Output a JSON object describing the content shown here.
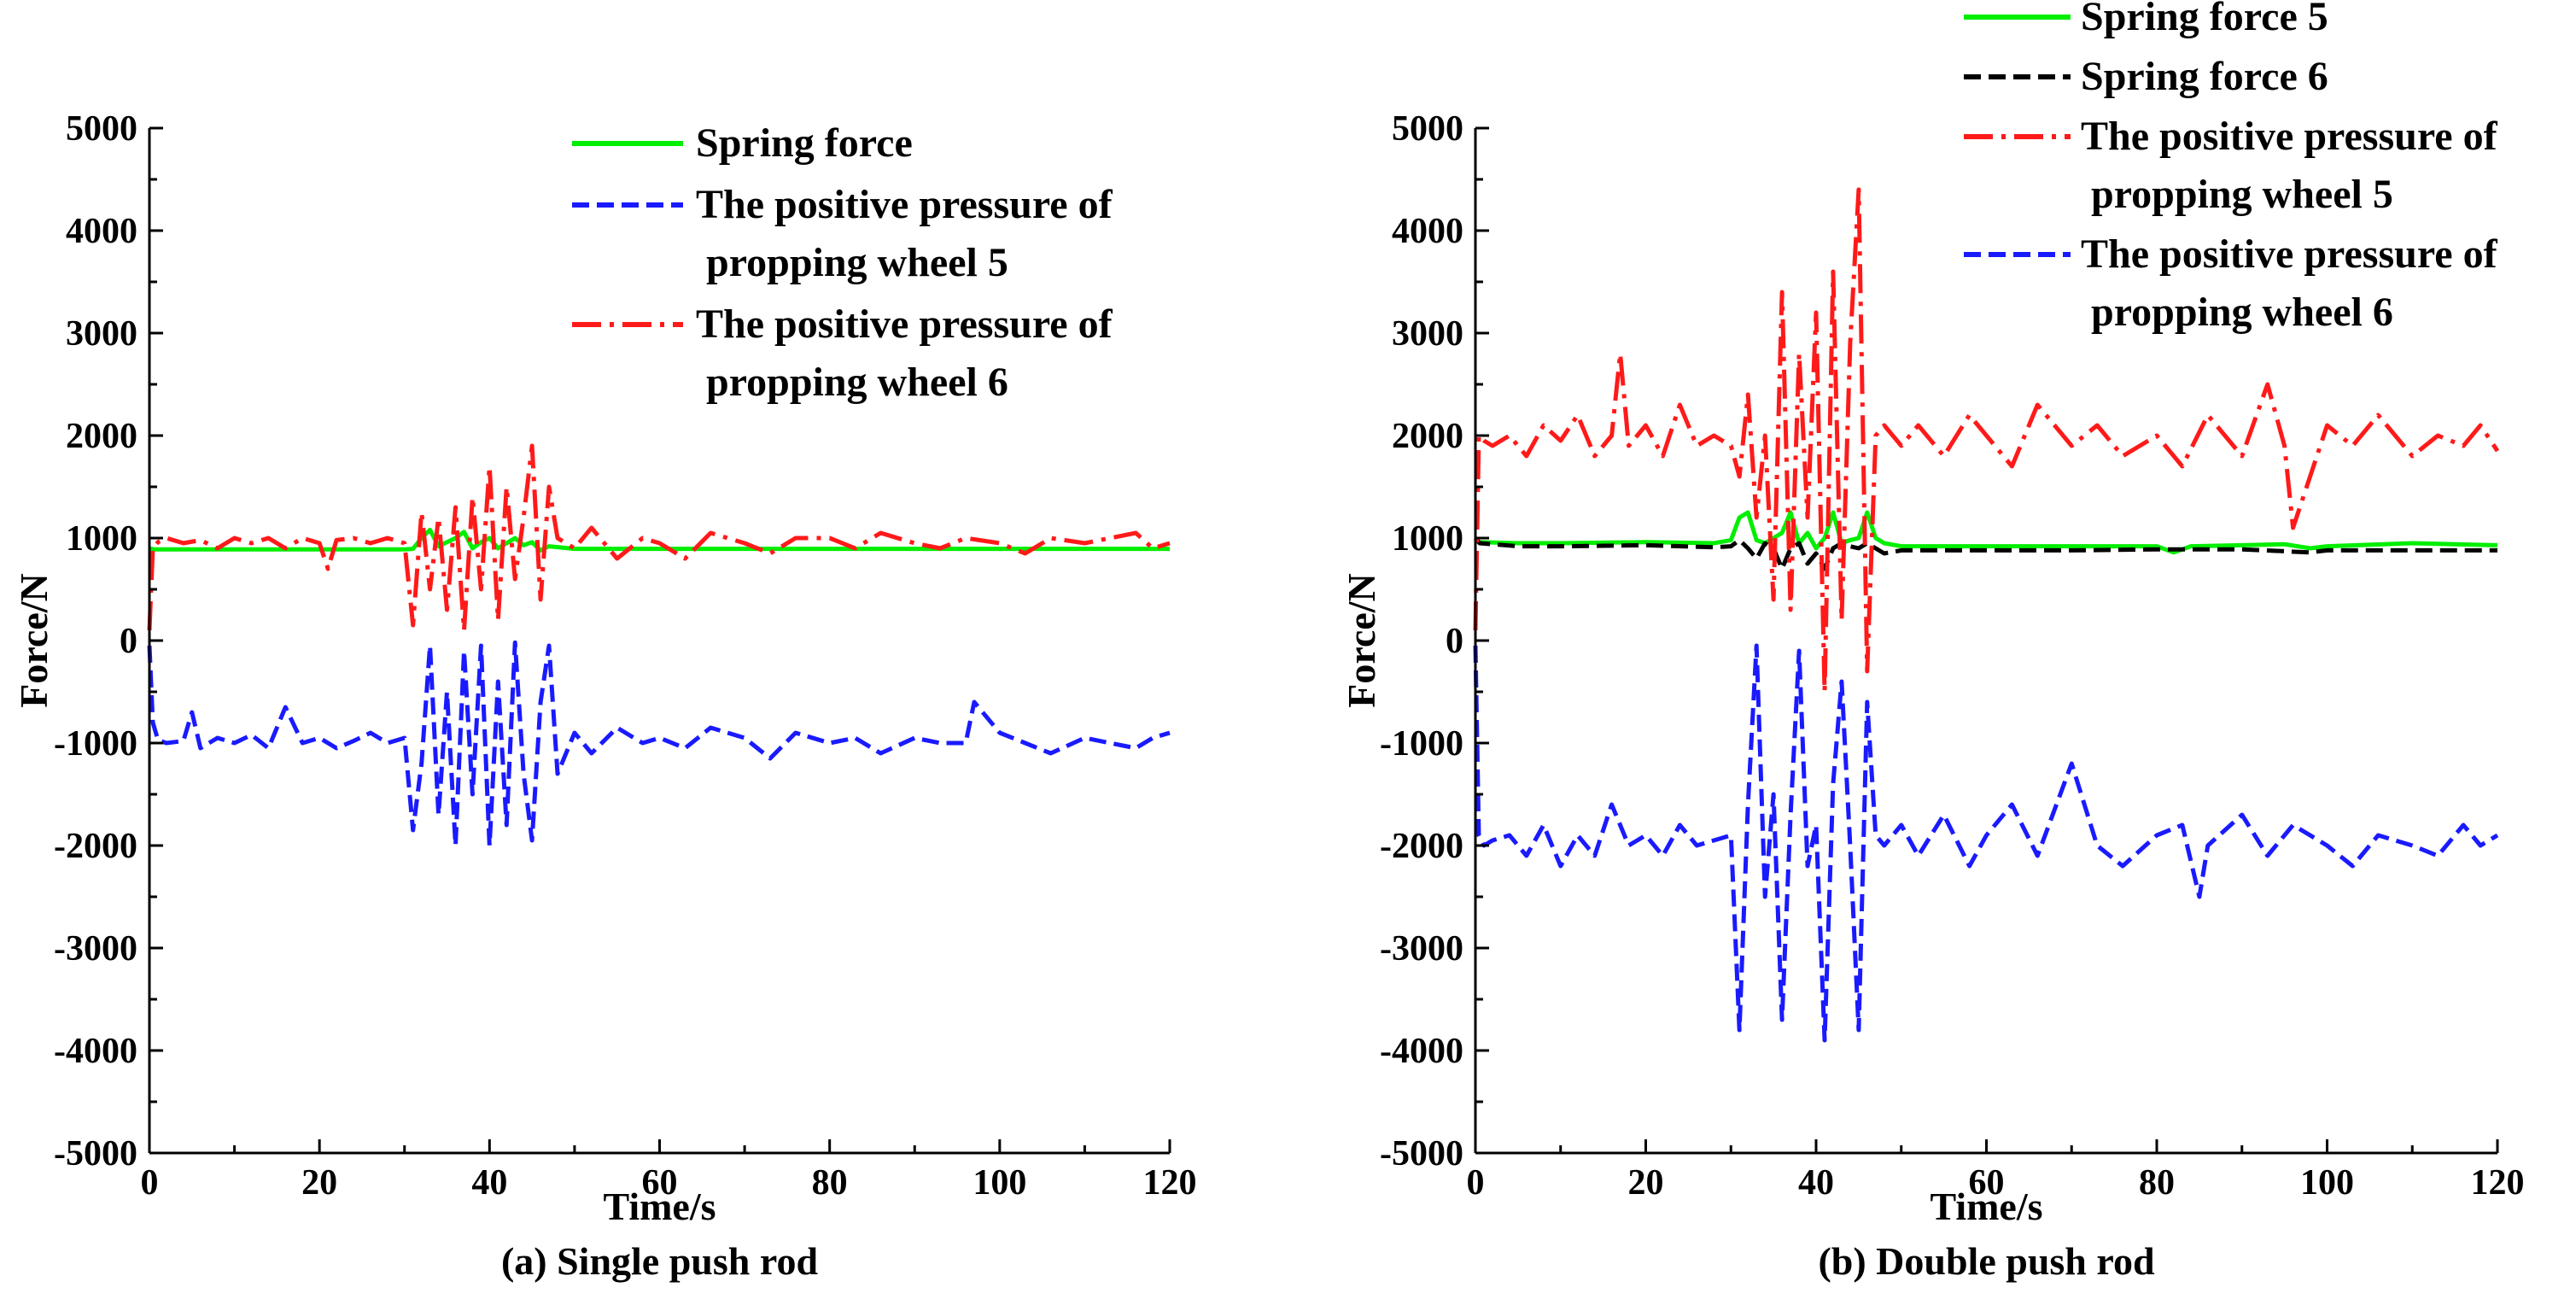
{
  "chart_data": [
    {
      "id": "a",
      "type": "line",
      "caption": "(a) Single push rod",
      "xlabel": "Time/s",
      "ylabel": "Force/N",
      "xlim": [
        0,
        120
      ],
      "ylim": [
        -5000,
        5000
      ],
      "xticks": [
        0,
        20,
        40,
        60,
        80,
        100,
        120
      ],
      "yticks": [
        -5000,
        -4000,
        -3000,
        -2000,
        -1000,
        0,
        1000,
        2000,
        3000,
        4000,
        5000
      ],
      "legend_position": "top-right",
      "series": [
        {
          "name": "Spring force",
          "legend_lines": [
            "Spring force"
          ],
          "color": "#00ee00",
          "dash": "solid",
          "x": [
            0,
            0.5,
            5,
            10,
            20,
            30,
            31,
            32,
            33,
            34,
            35,
            36,
            37,
            38,
            39,
            40,
            41,
            42,
            43,
            44,
            45,
            46,
            47,
            50,
            60,
            70,
            80,
            90,
            100,
            110,
            120
          ],
          "y": [
            900,
            890,
            890,
            890,
            890,
            890,
            895,
            1000,
            1080,
            920,
            960,
            1000,
            1060,
            900,
            960,
            1000,
            900,
            950,
            1000,
            930,
            960,
            880,
            920,
            895,
            895,
            895,
            895,
            895,
            895,
            895,
            895
          ]
        },
        {
          "name": "The positive pressure of propping wheel 5",
          "legend_lines": [
            "The positive pressure of",
            "propping wheel 5"
          ],
          "color": "#1a1aff",
          "dash": "dashed",
          "x": [
            0,
            0.4,
            1,
            2,
            4,
            5,
            6,
            8,
            10,
            12,
            14,
            16,
            18,
            20,
            22,
            24,
            26,
            28,
            30,
            31,
            32,
            33,
            34,
            35,
            36,
            37,
            38,
            39,
            40,
            41,
            42,
            43,
            44,
            45,
            46,
            47,
            48,
            50,
            52,
            55,
            58,
            60,
            63,
            66,
            70,
            73,
            76,
            80,
            83,
            86,
            90,
            93,
            96,
            97,
            100,
            103,
            106,
            110,
            113,
            116,
            118,
            120
          ],
          "y": [
            -50,
            -800,
            -970,
            -1000,
            -980,
            -700,
            -1050,
            -950,
            -1000,
            -920,
            -1050,
            -650,
            -1000,
            -950,
            -1050,
            -980,
            -900,
            -1000,
            -950,
            -1850,
            -1200,
            -50,
            -1700,
            -500,
            -2000,
            -100,
            -1500,
            -50,
            -2000,
            -400,
            -1800,
            -20,
            -1300,
            -1950,
            -600,
            -50,
            -1300,
            -900,
            -1100,
            -850,
            -1000,
            -950,
            -1050,
            -850,
            -950,
            -1150,
            -900,
            -1000,
            -950,
            -1100,
            -950,
            -1000,
            -1000,
            -600,
            -900,
            -1000,
            -1100,
            -950,
            -1000,
            -1050,
            -950,
            -900
          ]
        },
        {
          "name": "The positive pressure of propping wheel 6",
          "legend_lines": [
            "The positive pressure of",
            "propping wheel 6"
          ],
          "color": "#ff1a1a",
          "dash": "dashdot",
          "x": [
            0,
            0.4,
            1,
            2,
            4,
            6,
            8,
            10,
            12,
            14,
            16,
            18,
            20,
            21,
            22,
            24,
            26,
            28,
            30,
            31,
            32,
            33,
            34,
            35,
            36,
            37,
            38,
            39,
            40,
            41,
            42,
            43,
            44,
            45,
            46,
            47,
            48,
            50,
            52,
            55,
            58,
            60,
            63,
            66,
            70,
            73,
            76,
            80,
            83,
            86,
            90,
            93,
            96,
            100,
            103,
            106,
            110,
            113,
            116,
            118,
            120
          ],
          "y": [
            100,
            900,
            960,
            1000,
            950,
            980,
            900,
            1000,
            950,
            1000,
            900,
            1000,
            950,
            700,
            980,
            1000,
            950,
            1000,
            950,
            150,
            1250,
            500,
            1200,
            300,
            1300,
            100,
            1400,
            500,
            1700,
            200,
            1500,
            600,
            1200,
            1900,
            400,
            1500,
            1000,
            900,
            1100,
            800,
            1000,
            950,
            800,
            1050,
            950,
            850,
            1000,
            1000,
            900,
            1050,
            950,
            900,
            1000,
            950,
            850,
            1000,
            950,
            1000,
            1050,
            900,
            950
          ]
        }
      ]
    },
    {
      "id": "b",
      "type": "line",
      "caption": "(b) Double push rod",
      "xlabel": "Time/s",
      "ylabel": "Force/N",
      "xlim": [
        0,
        120
      ],
      "ylim": [
        -5000,
        5000
      ],
      "xticks": [
        0,
        20,
        40,
        60,
        80,
        100,
        120
      ],
      "yticks": [
        -5000,
        -4000,
        -3000,
        -2000,
        -1000,
        0,
        1000,
        2000,
        3000,
        4000,
        5000
      ],
      "legend_position": "top-right",
      "series": [
        {
          "name": "Spring force 5",
          "legend_lines": [
            "Spring force 5"
          ],
          "color": "#00ee00",
          "dash": "solid",
          "x": [
            0,
            0.5,
            5,
            10,
            20,
            28,
            30,
            31,
            32,
            33,
            34,
            35,
            36,
            37,
            38,
            39,
            40,
            41,
            42,
            43,
            44,
            45,
            46,
            47,
            48,
            50,
            60,
            70,
            80,
            82,
            84,
            90,
            95,
            98,
            100,
            110,
            120
          ],
          "y": [
            980,
            960,
            950,
            950,
            960,
            950,
            980,
            1200,
            1250,
            980,
            950,
            1000,
            1050,
            1250,
            950,
            1050,
            900,
            1000,
            1250,
            950,
            980,
            1000,
            1250,
            1000,
            950,
            920,
            920,
            920,
            920,
            860,
            920,
            930,
            940,
            900,
            920,
            950,
            930
          ]
        },
        {
          "name": "Spring force 6",
          "legend_lines": [
            "Spring force 6"
          ],
          "color": "#000000",
          "dash": "dashed",
          "x": [
            0,
            0.5,
            5,
            10,
            20,
            28,
            30,
            31,
            32,
            33,
            34,
            35,
            36,
            37,
            38,
            39,
            40,
            41,
            42,
            43,
            44,
            45,
            46,
            47,
            48,
            50,
            60,
            70,
            80,
            90,
            98,
            100,
            110,
            120
          ],
          "y": [
            1000,
            950,
            920,
            920,
            930,
            910,
            920,
            980,
            900,
            800,
            950,
            900,
            700,
            900,
            950,
            750,
            850,
            700,
            900,
            950,
            920,
            900,
            950,
            900,
            850,
            880,
            880,
            880,
            890,
            890,
            860,
            880,
            880,
            880
          ]
        },
        {
          "name": "The positive pressure of propping wheel 5",
          "legend_lines": [
            "The positive pressure of",
            "propping wheel 5"
          ],
          "color": "#ff1a1a",
          "dash": "dashdot",
          "x": [
            0,
            0.4,
            1,
            2,
            4,
            6,
            8,
            10,
            12,
            14,
            16,
            17,
            18,
            20,
            22,
            24,
            26,
            28,
            30,
            31,
            32,
            33,
            34,
            35,
            36,
            37,
            38,
            39,
            40,
            41,
            42,
            43,
            44,
            45,
            46,
            47,
            48,
            50,
            52,
            55,
            58,
            60,
            63,
            66,
            70,
            73,
            76,
            80,
            83,
            86,
            90,
            93,
            95,
            96,
            100,
            103,
            106,
            110,
            113,
            116,
            118,
            120
          ],
          "y": [
            100,
            2000,
            1950,
            1900,
            2000,
            1800,
            2100,
            1950,
            2200,
            1800,
            2000,
            2800,
            1900,
            2100,
            1800,
            2300,
            1900,
            2000,
            1900,
            1600,
            2400,
            1200,
            2000,
            400,
            3400,
            300,
            2800,
            1200,
            3200,
            -500,
            3600,
            200,
            2900,
            4400,
            -300,
            2000,
            2100,
            1900,
            2100,
            1800,
            2200,
            2000,
            1700,
            2300,
            1900,
            2100,
            1800,
            2000,
            1700,
            2200,
            1800,
            2500,
            1900,
            1100,
            2100,
            1900,
            2200,
            1800,
            2000,
            1900,
            2100,
            1850
          ]
        },
        {
          "name": "The positive pressure of propping wheel 6",
          "legend_lines": [
            "The positive pressure of",
            "propping wheel 6"
          ],
          "color": "#1a1aff",
          "dash": "dashed",
          "x": [
            0,
            0.4,
            1,
            2,
            4,
            6,
            8,
            10,
            12,
            14,
            16,
            18,
            20,
            22,
            24,
            26,
            28,
            30,
            31,
            32,
            33,
            34,
            35,
            36,
            37,
            38,
            39,
            40,
            41,
            42,
            43,
            44,
            45,
            46,
            47,
            48,
            50,
            52,
            55,
            58,
            60,
            63,
            66,
            70,
            73,
            76,
            80,
            83,
            85,
            86,
            90,
            93,
            96,
            100,
            103,
            106,
            110,
            113,
            116,
            118,
            120
          ],
          "y": [
            -50,
            -1900,
            -2000,
            -1950,
            -1900,
            -2100,
            -1800,
            -2200,
            -1900,
            -2100,
            -1600,
            -2000,
            -1900,
            -2100,
            -1800,
            -2000,
            -1950,
            -1900,
            -3800,
            -1600,
            -50,
            -2500,
            -1500,
            -3700,
            -1700,
            -100,
            -2200,
            -1800,
            -3900,
            -1400,
            -400,
            -2000,
            -3800,
            -600,
            -1900,
            -2000,
            -1800,
            -2100,
            -1700,
            -2200,
            -1900,
            -1600,
            -2100,
            -1200,
            -2000,
            -2200,
            -1900,
            -1800,
            -2500,
            -2000,
            -1700,
            -2100,
            -1800,
            -2000,
            -2200,
            -1900,
            -2000,
            -2100,
            -1800,
            -2000,
            -1900
          ]
        }
      ]
    }
  ]
}
